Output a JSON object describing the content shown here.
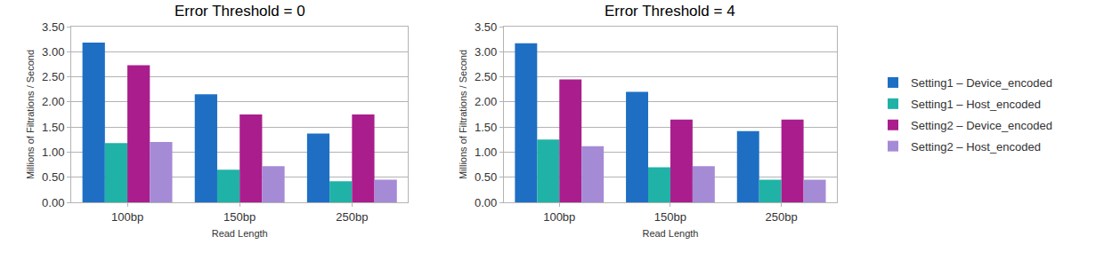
{
  "chart_data": [
    {
      "type": "bar",
      "title": "Error Threshold = 0",
      "x_label": "Read Length",
      "y_label": "Millions of Filtrations / Second",
      "categories": [
        "100bp",
        "150bp",
        "250bp"
      ],
      "series": [
        {
          "name": "Setting1 – Device_encoded",
          "color": "#1e6fc4",
          "values": [
            3.18,
            2.15,
            1.37
          ]
        },
        {
          "name": "Setting1 – Host_encoded",
          "color": "#20b2a6",
          "values": [
            1.18,
            0.65,
            0.42
          ]
        },
        {
          "name": "Setting2 – Device_encoded",
          "color": "#a91e8c",
          "values": [
            2.73,
            1.75,
            1.75
          ]
        },
        {
          "name": "Setting2 – Host_encoded",
          "color": "#a58bd6",
          "values": [
            1.2,
            0.72,
            0.45
          ]
        }
      ],
      "ylim": [
        0,
        3.5
      ],
      "yticks": [
        {
          "value": 0,
          "label": "0.00"
        },
        {
          "value": 0.5,
          "label": "0.50"
        },
        {
          "value": 1,
          "label": "1.00"
        },
        {
          "value": 1.5,
          "label": "1.50"
        },
        {
          "value": 2,
          "label": "2.00"
        },
        {
          "value": 2.5,
          "label": "2.50"
        },
        {
          "value": 3,
          "label": "3.00"
        },
        {
          "value": 3.5,
          "label": "3.50"
        }
      ],
      "grid": true
    },
    {
      "type": "bar",
      "title": "Error Threshold = 4",
      "x_label": "Read Length",
      "y_label": "Millions of Filtrations / Second",
      "categories": [
        "100bp",
        "150bp",
        "250bp"
      ],
      "series": [
        {
          "name": "Setting1 – Device_encoded",
          "color": "#1e6fc4",
          "values": [
            3.17,
            2.2,
            1.42
          ]
        },
        {
          "name": "Setting1 – Host_encoded",
          "color": "#20b2a6",
          "values": [
            1.25,
            0.7,
            0.45
          ]
        },
        {
          "name": "Setting2 – Device_encoded",
          "color": "#a91e8c",
          "values": [
            2.45,
            1.65,
            1.65
          ]
        },
        {
          "name": "Setting2 – Host_encoded",
          "color": "#a58bd6",
          "values": [
            1.12,
            0.72,
            0.45
          ]
        }
      ],
      "ylim": [
        0,
        3.5
      ],
      "yticks": [
        {
          "value": 0,
          "label": "0.00"
        },
        {
          "value": 0.5,
          "label": "0.50"
        },
        {
          "value": 1,
          "label": "1.00"
        },
        {
          "value": 1.5,
          "label": "1.50"
        },
        {
          "value": 2,
          "label": "2.00"
        },
        {
          "value": 2.5,
          "label": "2.50"
        },
        {
          "value": 3,
          "label": "3.00"
        },
        {
          "value": 3.5,
          "label": "3.50"
        }
      ],
      "grid": true,
      "legend": "right"
    }
  ]
}
